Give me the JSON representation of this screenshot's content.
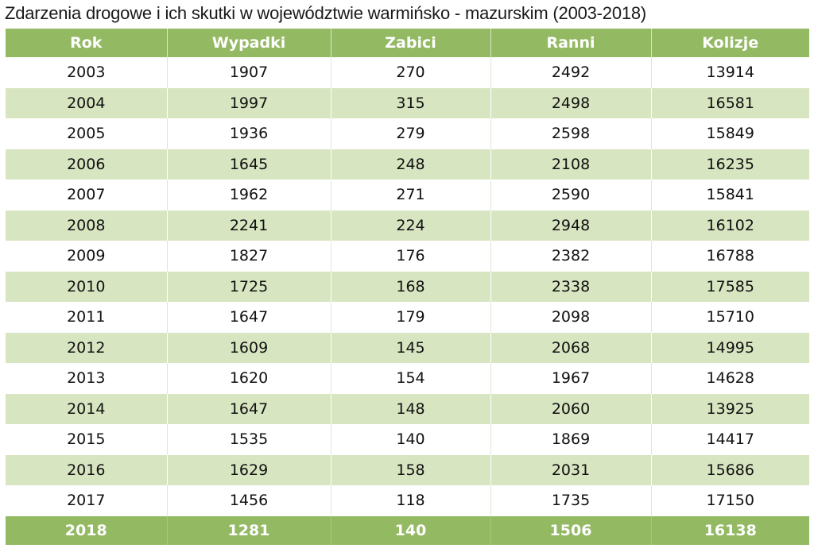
{
  "chart_data": {
    "type": "table",
    "title": "Zdarzenia drogowe i ich skutki w województwie warmińsko - mazurskim (2003-2018)",
    "columns": [
      "Rok",
      "Wypadki",
      "Zabici",
      "Ranni",
      "Kolizje"
    ],
    "rows": [
      [
        "2003",
        "1907",
        "270",
        "2492",
        "13914"
      ],
      [
        "2004",
        "1997",
        "315",
        "2498",
        "16581"
      ],
      [
        "2005",
        "1936",
        "279",
        "2598",
        "15849"
      ],
      [
        "2006",
        "1645",
        "248",
        "2108",
        "16235"
      ],
      [
        "2007",
        "1962",
        "271",
        "2590",
        "15841"
      ],
      [
        "2008",
        "2241",
        "224",
        "2948",
        "16102"
      ],
      [
        "2009",
        "1827",
        "176",
        "2382",
        "16788"
      ],
      [
        "2010",
        "1725",
        "168",
        "2338",
        "17585"
      ],
      [
        "2011",
        "1647",
        "179",
        "2098",
        "15710"
      ],
      [
        "2012",
        "1609",
        "145",
        "2068",
        "14995"
      ],
      [
        "2013",
        "1620",
        "154",
        "1967",
        "14628"
      ],
      [
        "2014",
        "1647",
        "148",
        "2060",
        "13925"
      ],
      [
        "2015",
        "1535",
        "140",
        "1869",
        "14417"
      ],
      [
        "2016",
        "1629",
        "158",
        "2031",
        "15686"
      ],
      [
        "2017",
        "1456",
        "118",
        "1735",
        "17150"
      ],
      [
        "2018",
        "1281",
        "140",
        "1506",
        "16138"
      ]
    ],
    "highlight_last_row": true,
    "colors": {
      "header": "#94b963",
      "band": "#d8e5c1",
      "text": "#111111",
      "header_text": "#ffffff"
    }
  }
}
